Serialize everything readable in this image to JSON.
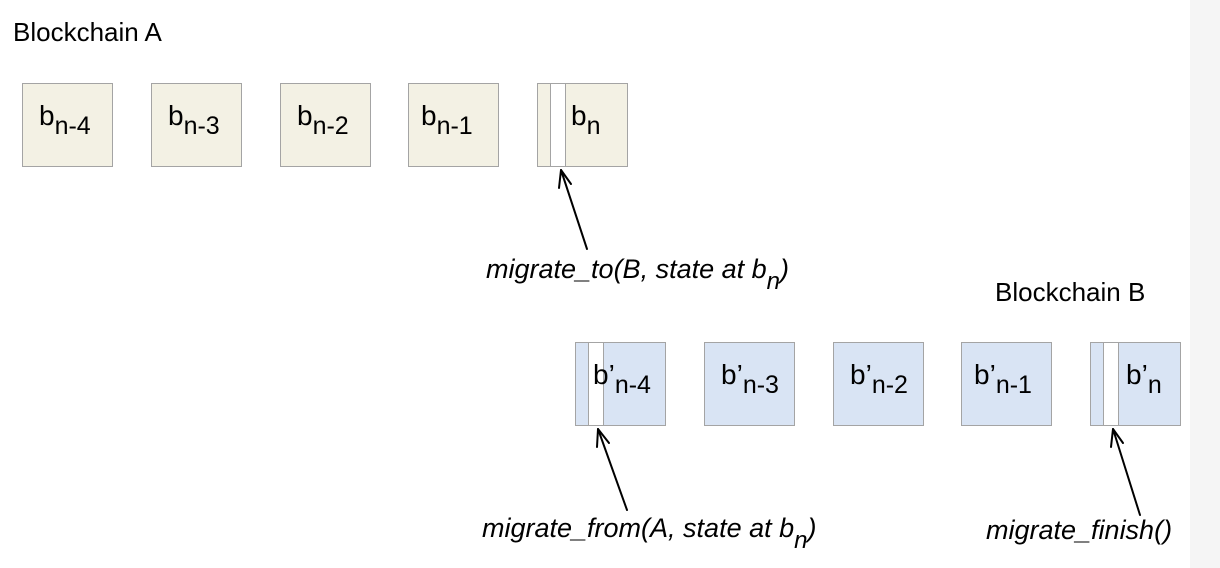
{
  "chain_a": {
    "title": "Blockchain A",
    "blocks": [
      {
        "base": "b",
        "prime": "",
        "sub": "n-4"
      },
      {
        "base": "b",
        "prime": "",
        "sub": "n-3"
      },
      {
        "base": "b",
        "prime": "",
        "sub": "n-2"
      },
      {
        "base": "b",
        "prime": "",
        "sub": "n-1"
      },
      {
        "base": "b",
        "prime": "",
        "sub": "n"
      }
    ]
  },
  "chain_b": {
    "title": "Blockchain B",
    "blocks": [
      {
        "base": "b",
        "prime": "’",
        "sub": "n-4"
      },
      {
        "base": "b",
        "prime": "’",
        "sub": "n-3"
      },
      {
        "base": "b",
        "prime": "’",
        "sub": "n-2"
      },
      {
        "base": "b",
        "prime": "’",
        "sub": "n-1"
      },
      {
        "base": "b",
        "prime": "’",
        "sub": "n"
      }
    ]
  },
  "calls": {
    "migrate_to": {
      "text": "migrate_to(B, state at b",
      "sub": "n",
      "close": ")"
    },
    "migrate_from": {
      "text": "migrate_from(A, state at b",
      "sub": "n",
      "close": ")"
    },
    "migrate_finish": {
      "text": "migrate_finish()"
    }
  },
  "colors": {
    "chain_a_block": "#f3f1e4",
    "chain_b_block": "#d9e4f4",
    "border": "#a4a4a4",
    "stripe": "#ffffff"
  }
}
